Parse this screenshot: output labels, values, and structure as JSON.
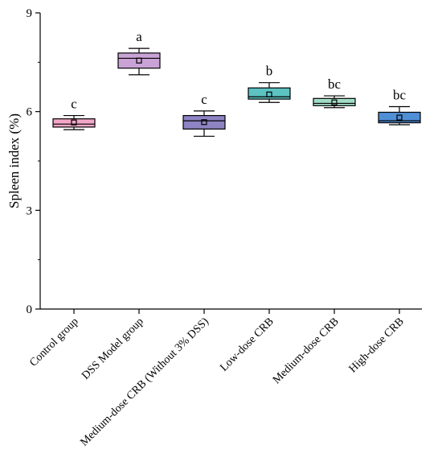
{
  "chart_data": {
    "type": "box",
    "ylabel": "Spleen index (%)",
    "xlabel": "",
    "ylim": [
      0,
      9
    ],
    "yticks": [
      0,
      3,
      6,
      9
    ],
    "grid": false,
    "categories": [
      "Control group",
      "DSS Model group",
      "Medium-dose CRB (Without 3% DSS)",
      "Low-dose CRB",
      "Medium-dose CRB",
      "High-dose CRB"
    ],
    "boxes": [
      {
        "whisker_low": 5.45,
        "q1": 5.53,
        "median": 5.62,
        "q3": 5.78,
        "whisker_high": 5.88,
        "mean": 5.67,
        "significance": "c",
        "color": "#f2a6c8"
      },
      {
        "whisker_low": 7.12,
        "q1": 7.32,
        "median": 7.62,
        "q3": 7.78,
        "whisker_high": 7.92,
        "mean": 7.55,
        "significance": "a",
        "color": "#c9a2d6"
      },
      {
        "whisker_low": 5.25,
        "q1": 5.47,
        "median": 5.72,
        "q3": 5.88,
        "whisker_high": 6.02,
        "mean": 5.68,
        "significance": "c",
        "color": "#8e84c4"
      },
      {
        "whisker_low": 6.28,
        "q1": 6.38,
        "median": 6.45,
        "q3": 6.72,
        "whisker_high": 6.88,
        "mean": 6.52,
        "significance": "b",
        "color": "#5cc2c2"
      },
      {
        "whisker_low": 6.12,
        "q1": 6.18,
        "median": 6.25,
        "q3": 6.4,
        "whisker_high": 6.48,
        "mean": 6.28,
        "significance": "bc",
        "color": "#a2dcc6"
      },
      {
        "whisker_low": 5.6,
        "q1": 5.66,
        "median": 5.72,
        "q3": 5.98,
        "whisker_high": 6.15,
        "mean": 5.82,
        "significance": "bc",
        "color": "#4f8fd6"
      }
    ]
  }
}
